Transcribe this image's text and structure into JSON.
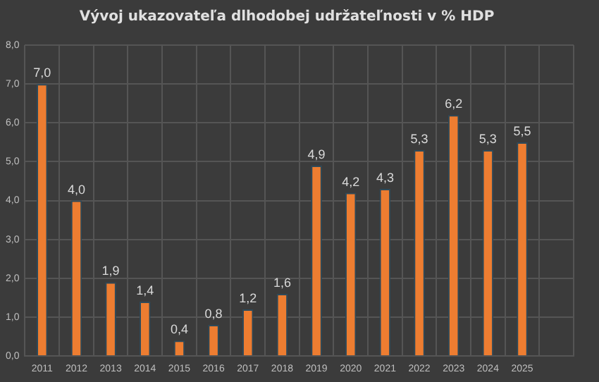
{
  "chart_data": {
    "type": "bar",
    "title": "Vývoj ukazovateľa dlhodobej udržateľnosti v % HDP",
    "categories": [
      "2011",
      "2012",
      "2013",
      "2014",
      "2015",
      "2016",
      "2017",
      "2018",
      "2019",
      "2020",
      "2021",
      "2022",
      "2023",
      "2024",
      "2025",
      null
    ],
    "values": [
      7.0,
      4.0,
      1.9,
      1.4,
      0.4,
      0.8,
      1.2,
      1.6,
      4.9,
      4.2,
      4.3,
      5.3,
      6.2,
      5.3,
      5.5,
      null
    ],
    "color": "#ed7d31",
    "ylim": [
      0,
      8
    ],
    "yticks": [
      {
        "value": 0,
        "label": "0,0"
      },
      {
        "value": 1,
        "label": "1,0"
      },
      {
        "value": 2,
        "label": "2,0"
      },
      {
        "value": 3,
        "label": "3,0"
      },
      {
        "value": 4,
        "label": "4,0"
      },
      {
        "value": 5,
        "label": "5,0"
      },
      {
        "value": 6,
        "label": "6,0"
      },
      {
        "value": 7,
        "label": "7,0"
      },
      {
        "value": 8,
        "label": "8,0"
      }
    ],
    "value_labels": [
      "7,0",
      "4,0",
      "1,9",
      "1,4",
      "0,4",
      "0,8",
      "1,2",
      "1,6",
      "4,9",
      "4,2",
      "4,3",
      "5,3",
      "6,2",
      "5,3",
      "5,5",
      null
    ],
    "grid": true,
    "legend": false
  }
}
